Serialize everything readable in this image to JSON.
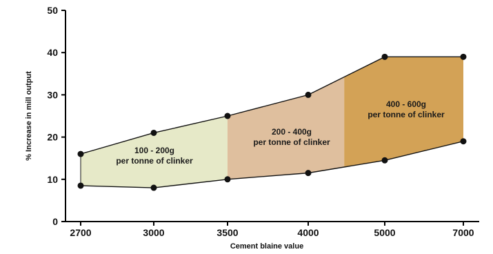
{
  "chart_data": {
    "type": "area",
    "xlabel": "Cement blaine value",
    "ylabel": "% Increase in mill output",
    "categories": [
      "2700",
      "3000",
      "3500",
      "4000",
      "5000",
      "7000"
    ],
    "ylim": [
      0,
      50
    ],
    "yticks": [
      "0",
      "10",
      "20",
      "30",
      "40",
      "50"
    ],
    "grid": false,
    "series": [
      {
        "values": [
          16,
          21,
          25,
          30,
          39,
          39
        ]
      },
      {
        "values": [
          8.5,
          8,
          10,
          11.5,
          14.5,
          19
        ]
      }
    ],
    "bands": [
      {
        "line1": "100 - 200g",
        "line2": "per tonne of clinker",
        "color": "#e6e9c8"
      },
      {
        "line1": "200 - 400g",
        "line2": "per tonne of clinker",
        "color": "#dfbf9e"
      },
      {
        "line1": "400 - 600g",
        "line2": "per tonne of clinker",
        "color": "#d3a256"
      }
    ]
  }
}
